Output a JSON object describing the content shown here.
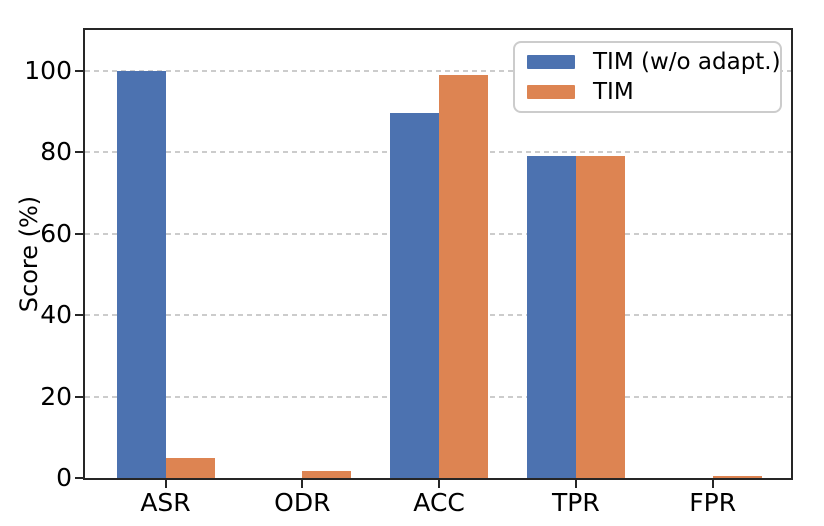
{
  "chart_data": {
    "type": "bar",
    "categories": [
      "ASR",
      "ODR",
      "ACC",
      "TPR",
      "FPR"
    ],
    "series": [
      {
        "name": "TIM (w/o adapt.)",
        "color": "#4C72B0",
        "values": [
          100.0,
          0.0,
          89.6,
          79.1,
          0.0
        ]
      },
      {
        "name": "TIM",
        "color": "#DD8452",
        "values": [
          4.8,
          1.7,
          99.0,
          79.1,
          0.4
        ]
      }
    ],
    "title": "",
    "xlabel": "",
    "ylabel": "Score (%)",
    "ylim": [
      0,
      110
    ],
    "yticks": [
      0,
      20,
      40,
      60,
      80,
      100
    ],
    "grid": "horizontal-dashed",
    "gridline_color": "#cccccc",
    "spine_color": "#262626",
    "legend_position": "upper right"
  }
}
